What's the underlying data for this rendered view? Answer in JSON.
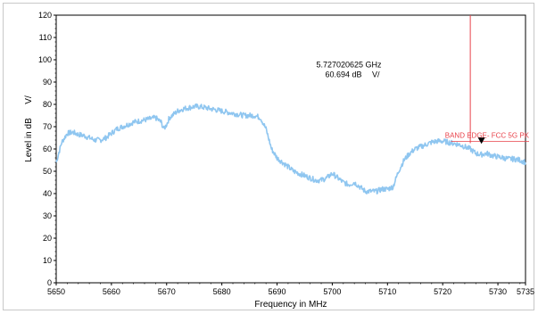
{
  "chart_data": {
    "type": "line",
    "xlabel": "Frequency in MHz",
    "ylabel": "Level in dB",
    "ylabel_unit": "V/",
    "xlim": [
      5650,
      5735
    ],
    "ylim": [
      0,
      120
    ],
    "x_ticks": [
      5650,
      5660,
      5670,
      5680,
      5690,
      5700,
      5710,
      5720,
      5730,
      5735
    ],
    "y_ticks": [
      0,
      10,
      20,
      30,
      40,
      50,
      60,
      70,
      80,
      90,
      100,
      110,
      120
    ],
    "grid": false,
    "trace_color": "#8fc6f0",
    "limit_color": "#e8424a",
    "series": [
      {
        "x": [
          5650,
          5651,
          5652,
          5653,
          5654,
          5655,
          5656,
          5657,
          5658,
          5659,
          5660,
          5661,
          5662,
          5663,
          5664,
          5665,
          5666,
          5667,
          5668,
          5669,
          5669.5,
          5670,
          5670.5,
          5671,
          5672,
          5673,
          5674,
          5675,
          5676,
          5677,
          5678,
          5679,
          5680,
          5681,
          5682,
          5683,
          5684,
          5685,
          5686,
          5687,
          5688,
          5689,
          5690,
          5691,
          5692,
          5693,
          5694,
          5695,
          5696,
          5697,
          5698,
          5699,
          5700,
          5701,
          5702,
          5703,
          5704,
          5705,
          5706,
          5707,
          5708,
          5709,
          5710,
          5711,
          5712,
          5713,
          5714,
          5715,
          5716,
          5717,
          5718,
          5719,
          5720,
          5721,
          5722,
          5723,
          5724,
          5725,
          5726,
          5727,
          5728,
          5729,
          5730,
          5731,
          5732,
          5733,
          5734,
          5735
        ],
        "y": [
          54,
          63,
          67,
          67.5,
          66.5,
          66,
          65,
          64,
          64,
          65,
          67,
          69,
          70,
          71,
          72,
          72.5,
          73,
          73.5,
          74,
          72,
          69,
          71,
          74,
          75,
          77,
          78,
          78.5,
          79,
          79,
          78.5,
          78,
          77.5,
          77,
          76.5,
          76,
          75.5,
          75,
          75,
          75,
          74,
          69,
          60,
          56,
          54,
          52,
          50,
          49,
          48,
          47,
          46,
          46,
          47,
          49,
          47,
          45,
          44,
          45,
          43,
          41,
          41,
          41,
          42,
          42,
          43,
          50,
          55,
          58,
          60,
          61,
          62,
          63,
          63.5,
          63.5,
          63,
          62.5,
          62,
          61,
          60,
          58,
          57.5,
          58,
          57,
          56.5,
          56,
          55.5,
          55.5,
          55,
          54
        ]
      }
    ],
    "limit_line": {
      "x": 5725,
      "label": "BAND EDGE- FCC 5G PK",
      "label_y": 65
    },
    "marker": {
      "x": 5727.02,
      "y": 60.694
    },
    "annotation": {
      "line1": "5.727020625 GHz",
      "line2": "60.694 dB",
      "line2_unit": "V/",
      "anchor_x": 5703,
      "anchor_y": 95
    }
  }
}
